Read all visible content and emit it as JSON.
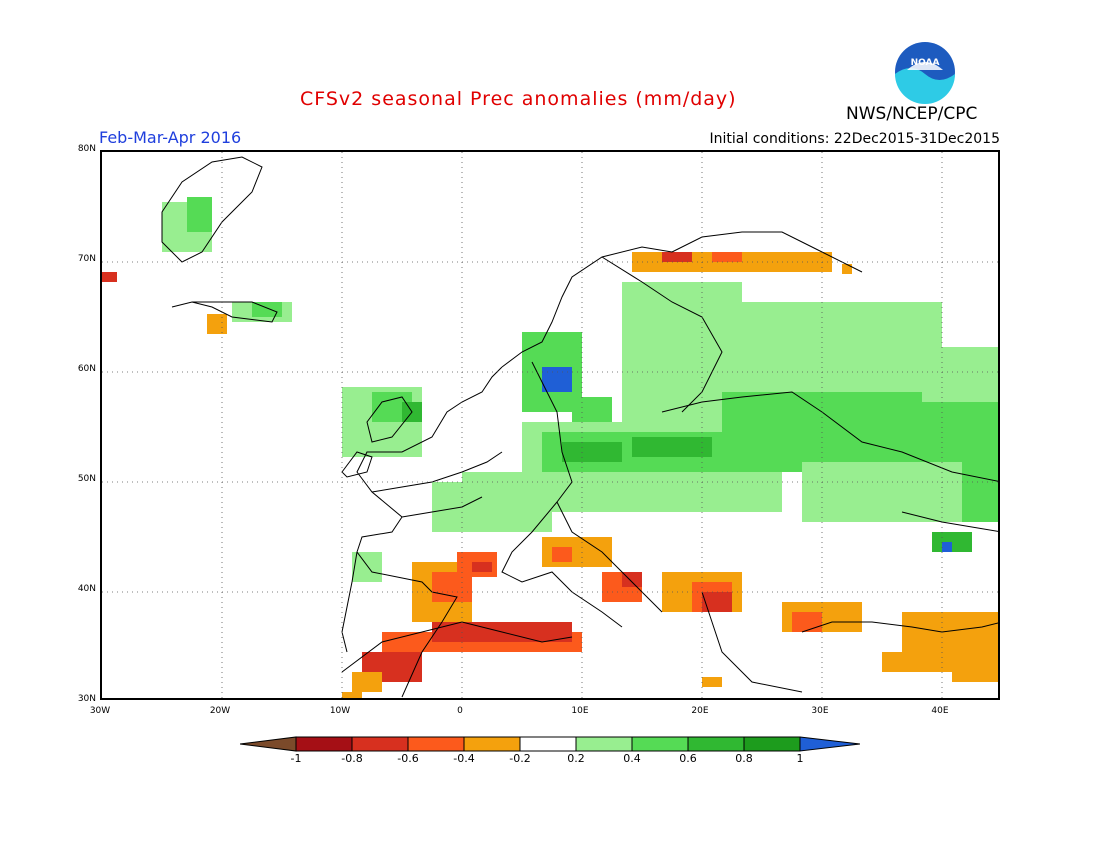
{
  "header": {
    "title": "CFSv2 seasonal Prec anomalies (mm/day)",
    "org": "NWS/NCEP/CPC",
    "season": "Feb-Mar-Apr 2016",
    "init": "Initial conditions: 22Dec2015-31Dec2015",
    "logo_text": "NOAA"
  },
  "colors": {
    "title": "#e00000",
    "season": "#1f3fdd",
    "bins": [
      "#7b4a2a",
      "#a50f15",
      "#d7301f",
      "#fc5a1c",
      "#f4a10d",
      "#ffffff",
      "#98ee90",
      "#55db55",
      "#30b832",
      "#1d9c1d",
      "#1f5fd6"
    ]
  },
  "map": {
    "lat_labels": [
      "80N",
      "70N",
      "60N",
      "50N",
      "40N",
      "30N"
    ],
    "lon_labels": [
      "30W",
      "20W",
      "10W",
      "0",
      "10E",
      "20E",
      "30E",
      "40E"
    ],
    "lon_range": [
      -30,
      45
    ],
    "lat_range": [
      30,
      80
    ]
  },
  "colorbar": {
    "labels": [
      "-1",
      "-0.8",
      "-0.6",
      "-0.4",
      "-0.2",
      "0.2",
      "0.4",
      "0.6",
      "0.8",
      "1"
    ]
  }
}
